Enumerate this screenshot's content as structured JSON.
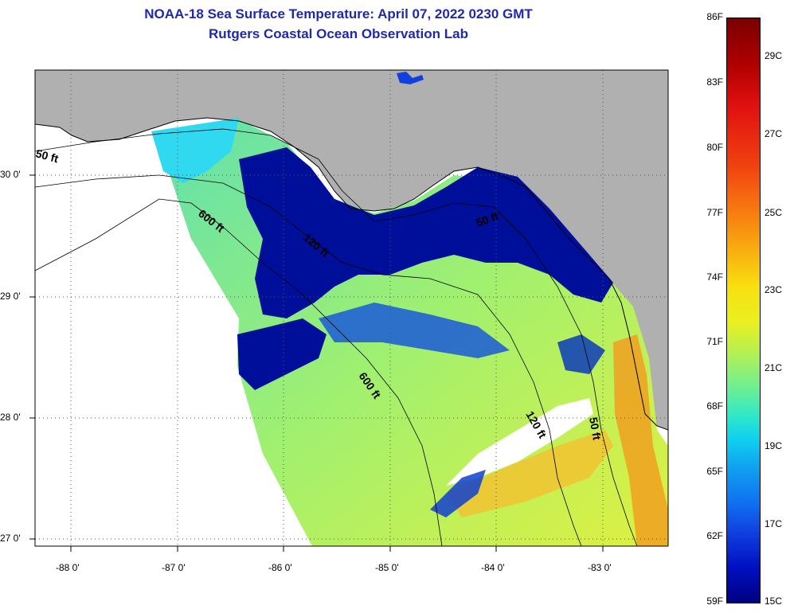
{
  "title": {
    "line1": "NOAA-18 Sea Surface Temperature:  April 07, 2022 0230 GMT",
    "line2": "Rutgers Coastal Ocean Observation Lab"
  },
  "colors": {
    "title_text": "#1f2aa8",
    "land": "#b0b0b0",
    "cloud_cold": "#000f9a",
    "warm_shelf": "#e8f040",
    "mid_shelf": "#70e8a0",
    "hot_coast": "#f0a020",
    "no_data": "#ffffff"
  },
  "map": {
    "lat_ticks": [
      "30 0'",
      "29 0'",
      "28 0'",
      "27 0'"
    ],
    "lon_ticks": [
      "-88 0'",
      "-87 0'",
      "-86 0'",
      "-85 0'",
      "-84 0'",
      "-83 0'"
    ],
    "contours": [
      "50 ft",
      "600 ft",
      "120 ft",
      "50 ft",
      "600 ft",
      "120 ft",
      "50 ft"
    ]
  },
  "colorbar": {
    "fahrenheit": [
      "86F",
      "83F",
      "80F",
      "77F",
      "74F",
      "71F",
      "68F",
      "65F",
      "62F",
      "59F"
    ],
    "celsius": [
      "29C",
      "27C",
      "25C",
      "23C",
      "21C",
      "19C",
      "17C",
      "15C"
    ]
  }
}
